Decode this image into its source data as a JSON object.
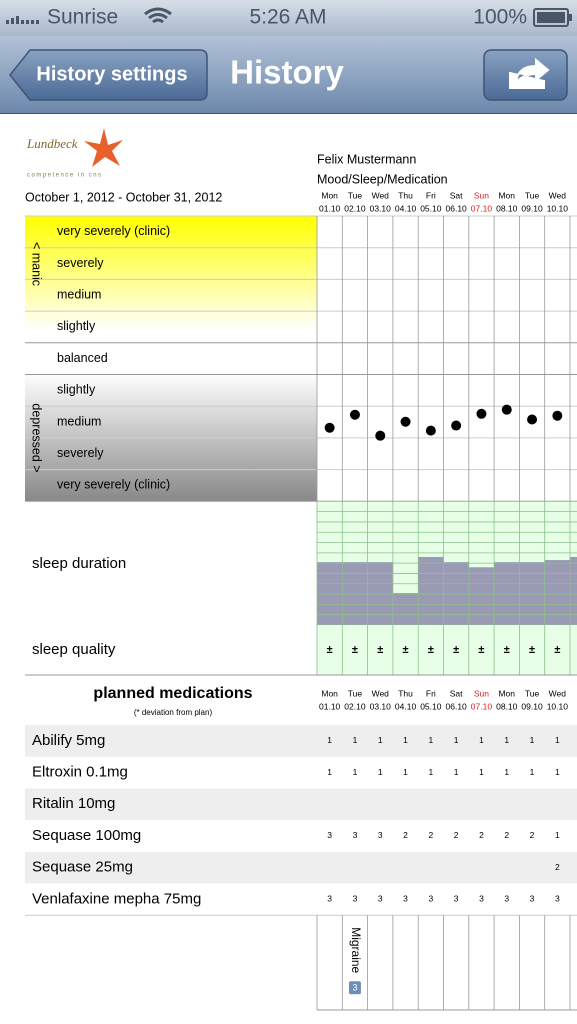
{
  "status_bar": {
    "carrier": "Sunrise",
    "time": "5:26 AM",
    "battery": "100%"
  },
  "nav_bar": {
    "back_button": "History settings",
    "title": "History"
  },
  "report": {
    "logo_name": "Lundbeck",
    "logo_tagline": "competence in cns",
    "patient": "Felix Mustermann",
    "subtitle": "Mood/Sleep/Medication",
    "period": "October 1, 2012 - October 31, 2012",
    "days": [
      {
        "weekday": "Mon",
        "date": "01.10",
        "color": "#000000"
      },
      {
        "weekday": "Tue",
        "date": "02.10",
        "color": "#000000"
      },
      {
        "weekday": "Wed",
        "date": "03.10",
        "color": "#000000"
      },
      {
        "weekday": "Thu",
        "date": "04.10",
        "color": "#000000"
      },
      {
        "weekday": "Fri",
        "date": "05.10",
        "color": "#000000"
      },
      {
        "weekday": "Sat",
        "date": "06.10",
        "color": "#000000"
      },
      {
        "weekday": "Sun",
        "date": "07.10",
        "color": "#e02020"
      },
      {
        "weekday": "Mon",
        "date": "08.10",
        "color": "#000000"
      },
      {
        "weekday": "Tue",
        "date": "09.10",
        "color": "#000000"
      },
      {
        "weekday": "Wed",
        "date": "10.10",
        "color": "#000000"
      }
    ],
    "mood": {
      "manic_label": "< manic",
      "depressed_label": "depressed >",
      "levels": [
        "very severely (clinic)",
        "severely",
        "medium",
        "slightly",
        "balanced",
        "slightly",
        "medium",
        "severely",
        "very severely (clinic)"
      ],
      "values": [
        -2.18,
        -1.77,
        -2.43,
        -1.99,
        -2.27,
        -2.11,
        -1.74,
        -1.61,
        -1.92,
        -1.8
      ]
    },
    "sleep_duration": {
      "label": "sleep duration",
      "hours": [
        6.1,
        6.1,
        6.1,
        3.1,
        6.6,
        6.1,
        5.6,
        6.1,
        6.1,
        6.3
      ]
    },
    "sleep_quality": {
      "label": "sleep quality",
      "marks": [
        "±",
        "±",
        "±",
        "±",
        "±",
        "±",
        "±",
        "±",
        "±",
        "±"
      ]
    },
    "medications": {
      "title": "planned medications",
      "note": "(* deviation from plan)",
      "rows": [
        {
          "name": "Abilify 5mg",
          "doses": [
            1,
            1,
            1,
            1,
            1,
            1,
            1,
            1,
            1,
            1
          ]
        },
        {
          "name": "Eltroxin 0.1mg",
          "doses": [
            1,
            1,
            1,
            1,
            1,
            1,
            1,
            1,
            1,
            1
          ]
        },
        {
          "name": "Ritalin 10mg",
          "doses": [
            null,
            null,
            null,
            null,
            null,
            null,
            null,
            null,
            null,
            null
          ]
        },
        {
          "name": "Sequase 100mg",
          "doses": [
            3,
            3,
            3,
            2,
            2,
            2,
            2,
            2,
            2,
            1
          ]
        },
        {
          "name": "Sequase 25mg",
          "doses": [
            null,
            null,
            null,
            null,
            null,
            null,
            null,
            null,
            null,
            2
          ]
        },
        {
          "name": "Venlafaxine mepha 75mg",
          "doses": [
            3,
            3,
            3,
            3,
            3,
            3,
            3,
            3,
            3,
            3
          ]
        }
      ]
    },
    "events": [
      {
        "date": "02.10",
        "label": "Migraine",
        "count": 3
      }
    ]
  }
}
